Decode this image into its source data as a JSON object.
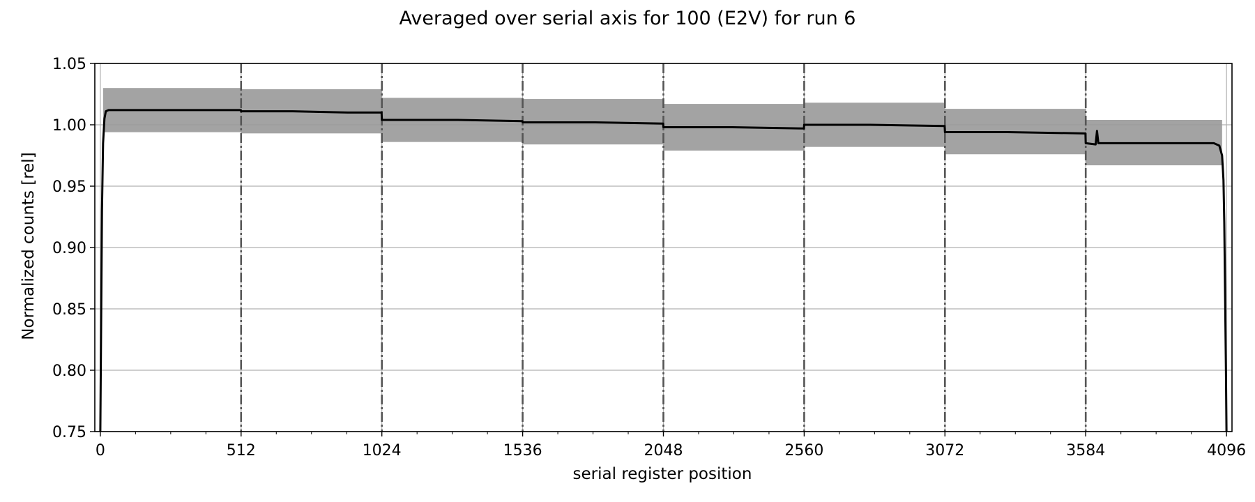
{
  "chart_data": {
    "type": "line",
    "title": "Averaged over serial axis for 100 (E2V) for run 6",
    "xlabel": "serial register position",
    "ylabel": "Normalized counts [rel]",
    "xlim": [
      -20,
      4116
    ],
    "ylim": [
      0.75,
      1.05
    ],
    "xticks": [
      0,
      512,
      1024,
      1536,
      2048,
      2560,
      3072,
      3584,
      4096
    ],
    "xtick_labels": [
      "0",
      "512",
      "1024",
      "1536",
      "2048",
      "2560",
      "3072",
      "3584",
      "4096"
    ],
    "yticks": [
      0.75,
      0.8,
      0.85,
      0.9,
      0.95,
      1.0,
      1.05
    ],
    "ytick_labels": [
      "0.75",
      "0.80",
      "0.85",
      "0.90",
      "0.95",
      "1.00",
      "1.05"
    ],
    "grid": true,
    "segment_boundaries": [
      512,
      1024,
      1536,
      2048,
      2560,
      3072,
      3584
    ],
    "series": [
      {
        "style": "mean line",
        "color": "#000000",
        "x": [
          0,
          3,
          6,
          10,
          15,
          20,
          30,
          60,
          200,
          400,
          511,
          512,
          700,
          900,
          1023,
          1024,
          1300,
          1535,
          1536,
          1800,
          2047,
          2048,
          2300,
          2559,
          2560,
          2800,
          3071,
          3072,
          3300,
          3583,
          3584,
          3620,
          3625,
          3630,
          3800,
          4050,
          4070,
          4080,
          4085,
          4088,
          4091,
          4094,
          4096
        ],
        "y": [
          0.75,
          0.84,
          0.93,
          0.985,
          1.005,
          1.011,
          1.012,
          1.012,
          1.012,
          1.012,
          1.012,
          1.011,
          1.011,
          1.01,
          1.01,
          1.004,
          1.004,
          1.003,
          1.002,
          1.002,
          1.001,
          0.998,
          0.998,
          0.997,
          1.0,
          1.0,
          0.999,
          0.994,
          0.994,
          0.993,
          0.985,
          0.984,
          0.995,
          0.985,
          0.985,
          0.985,
          0.983,
          0.975,
          0.955,
          0.92,
          0.86,
          0.8,
          0.75
        ]
      },
      {
        "style": "error band",
        "color": "#999999",
        "segments": [
          {
            "x": [
              10,
              512
            ],
            "low": 0.994,
            "high": 1.03
          },
          {
            "x": [
              512,
              1024
            ],
            "low": 0.993,
            "high": 1.029
          },
          {
            "x": [
              1024,
              1536
            ],
            "low": 0.986,
            "high": 1.022
          },
          {
            "x": [
              1536,
              2048
            ],
            "low": 0.984,
            "high": 1.021
          },
          {
            "x": [
              2048,
              2560
            ],
            "low": 0.979,
            "high": 1.017
          },
          {
            "x": [
              2560,
              3072
            ],
            "low": 0.982,
            "high": 1.018
          },
          {
            "x": [
              3072,
              3584
            ],
            "low": 0.976,
            "high": 1.013
          },
          {
            "x": [
              3584,
              4080
            ],
            "low": 0.967,
            "high": 1.004
          }
        ]
      }
    ]
  }
}
